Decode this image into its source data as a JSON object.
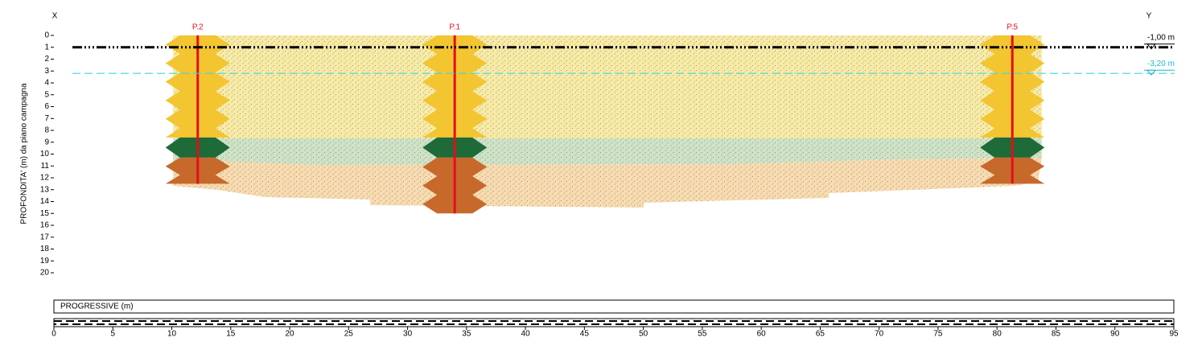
{
  "corners": {
    "left": "X",
    "right": "Y"
  },
  "y_axis": {
    "label": "PROFONDITA' (m) da piano campagna",
    "ticks": [
      0,
      1,
      2,
      3,
      4,
      5,
      6,
      7,
      8,
      9,
      10,
      11,
      12,
      13,
      14,
      15,
      16,
      17,
      18,
      19,
      20
    ]
  },
  "x_axis": {
    "label": "PROGRESSIVE (m)",
    "ticks": [
      0,
      5,
      10,
      15,
      20,
      25,
      30,
      35,
      40,
      45,
      50,
      55,
      60,
      65,
      70,
      75,
      80,
      85,
      90,
      95
    ]
  },
  "boreholes": [
    {
      "name": "P.2",
      "progressive": 12.2,
      "depth": 12.5
    },
    {
      "name": "P.1",
      "progressive": 34,
      "depth": 15
    },
    {
      "name": "P.5",
      "progressive": 81.3,
      "depth": 12.5
    }
  ],
  "water_levels": [
    {
      "label": "-1,00 m",
      "depth": 1.0
    },
    {
      "label": "-3,20 m",
      "depth": 3.2
    }
  ]
}
